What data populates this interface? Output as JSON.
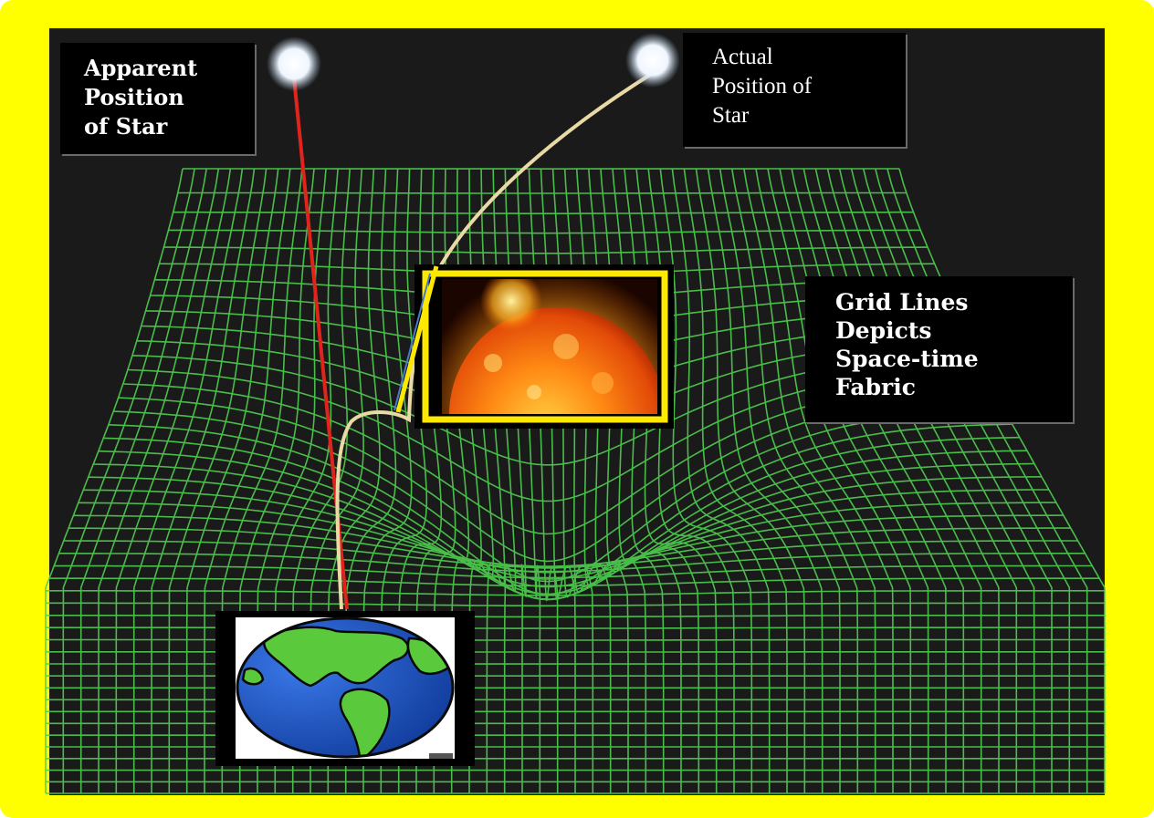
{
  "labels": {
    "apparent": [
      "Apparent",
      "Position",
      "of Star"
    ],
    "actual": [
      "Actual",
      "Position of",
      "Star"
    ],
    "grid": [
      "Grid Lines",
      "Depicts",
      "Space-time",
      "Fabric"
    ]
  },
  "icons": {
    "apparent_star": "glowing-star-icon",
    "actual_star": "glowing-star-icon",
    "sun": "sun-icon",
    "earth": "earth-globe-icon"
  },
  "colors": {
    "frame": "#ffff00",
    "background": "#111111",
    "grid": "#4fcf4f",
    "apparent_ray": "#e0241c",
    "actual_ray": "#e9d9a5",
    "sun_border": "#ffe800",
    "ocean": "#1d4fc4",
    "land": "#5ac93c"
  }
}
